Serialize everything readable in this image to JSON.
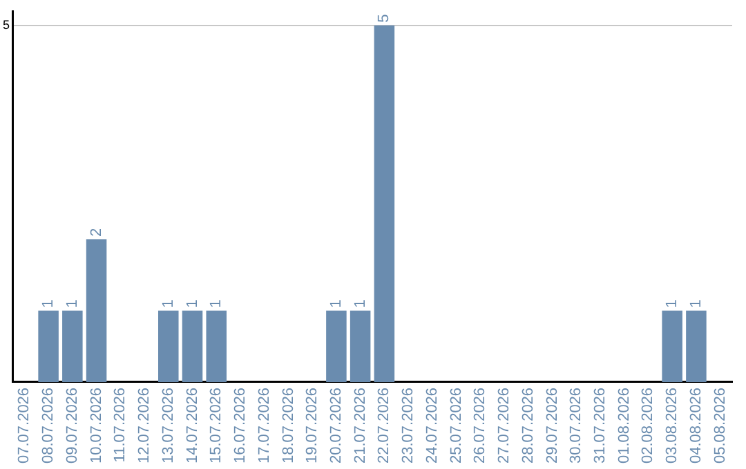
{
  "chart_data": {
    "type": "bar",
    "categories": [
      "07.07.2026",
      "08.07.2026",
      "09.07.2026",
      "10.07.2026",
      "11.07.2026",
      "12.07.2026",
      "13.07.2026",
      "14.07.2026",
      "15.07.2026",
      "16.07.2026",
      "17.07.2026",
      "18.07.2026",
      "19.07.2026",
      "20.07.2026",
      "21.07.2026",
      "22.07.2026",
      "23.07.2026",
      "24.07.2026",
      "25.07.2026",
      "26.07.2026",
      "27.07.2026",
      "28.07.2026",
      "29.07.2026",
      "30.07.2026",
      "31.07.2026",
      "01.08.2026",
      "02.08.2026",
      "03.08.2026",
      "04.08.2026",
      "05.08.2026"
    ],
    "values": [
      0,
      1,
      1,
      2,
      0,
      0,
      1,
      1,
      1,
      0,
      0,
      0,
      0,
      1,
      1,
      5,
      0,
      0,
      0,
      0,
      0,
      0,
      0,
      0,
      0,
      0,
      0,
      1,
      1,
      0
    ],
    "value_labels": [
      null,
      "1",
      "1",
      "2",
      null,
      null,
      "1",
      "1",
      "1",
      null,
      null,
      null,
      null,
      "1",
      "1",
      "5",
      null,
      null,
      null,
      null,
      null,
      null,
      null,
      null,
      null,
      null,
      null,
      "1",
      "1",
      null
    ],
    "color": "#6a8caf",
    "ylim": [
      0,
      5.2
    ],
    "yticks": [
      5
    ],
    "grid": "y",
    "legend": false
  }
}
